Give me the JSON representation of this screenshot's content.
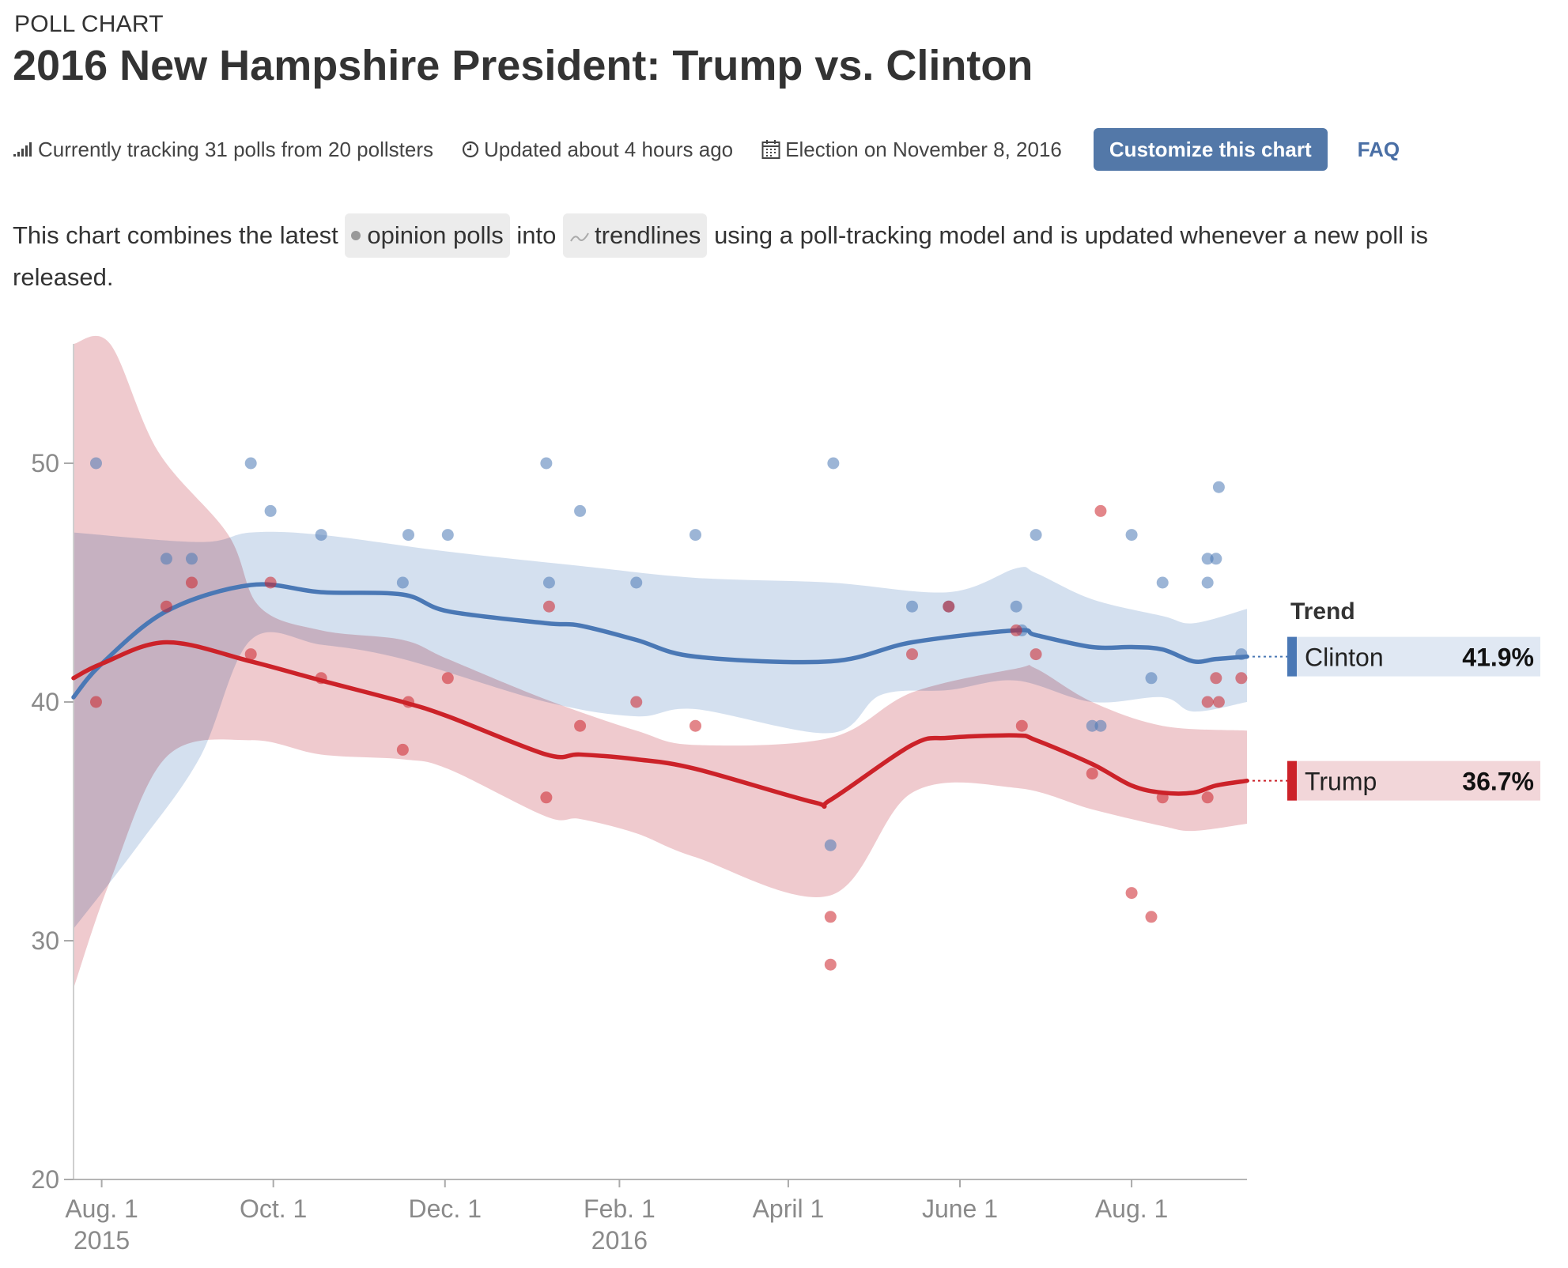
{
  "header": {
    "kicker": "POLL CHART",
    "title": "2016 New Hampshire President: Trump vs. Clinton"
  },
  "meta": {
    "tracking": "Currently tracking 31 polls from 20 pollsters",
    "updated": "Updated about 4 hours ago",
    "election": "Election on November 8, 2016",
    "customize_label": "Customize this chart",
    "faq_label": "FAQ"
  },
  "description": {
    "part1": "This chart combines the latest",
    "chip_polls": "opinion polls",
    "part2": "into",
    "chip_trend": "trendlines",
    "part3": "using a poll-tracking model and is updated whenever a new poll is released."
  },
  "colors": {
    "clinton": "#4a78b5",
    "trump": "#cc2229",
    "clinton_band": "#c6d6ea",
    "trump_band": "#e8b4b9",
    "accent_button": "#5378a8"
  },
  "chart_data": {
    "type": "line",
    "title": "2016 New Hampshire President: Trump vs. Clinton",
    "xlabel": "",
    "ylabel": "",
    "ylim": [
      20,
      55
    ],
    "yticks": [
      20,
      30,
      40,
      50
    ],
    "xlim": [
      "2015-07-22",
      "2016-09-11"
    ],
    "xticks": [
      {
        "date": "2015-08-01",
        "label": "Aug. 1",
        "sublabel": "2015"
      },
      {
        "date": "2015-10-01",
        "label": "Oct. 1",
        "sublabel": ""
      },
      {
        "date": "2015-12-01",
        "label": "Dec. 1",
        "sublabel": ""
      },
      {
        "date": "2016-02-01",
        "label": "Feb. 1",
        "sublabel": "2016"
      },
      {
        "date": "2016-04-01",
        "label": "April 1",
        "sublabel": ""
      },
      {
        "date": "2016-06-01",
        "label": "June 1",
        "sublabel": ""
      },
      {
        "date": "2016-08-01",
        "label": "Aug. 1",
        "sublabel": ""
      }
    ],
    "grid": false,
    "legend": {
      "title": "Trend",
      "placement": "right",
      "entries": [
        {
          "name": "Clinton",
          "value": "41.9%"
        },
        {
          "name": "Trump",
          "value": "36.7%"
        }
      ]
    },
    "series": [
      {
        "name": "Clinton",
        "trend": [
          [
            "2015-07-22",
            40.2
          ],
          [
            "2015-08-01",
            41.6
          ],
          [
            "2015-08-24",
            43.8
          ],
          [
            "2015-09-23",
            44.9
          ],
          [
            "2015-10-18",
            44.6
          ],
          [
            "2015-11-16",
            44.5
          ],
          [
            "2015-12-02",
            43.8
          ],
          [
            "2016-01-06",
            43.3
          ],
          [
            "2016-01-18",
            43.2
          ],
          [
            "2016-02-07",
            42.6
          ],
          [
            "2016-02-28",
            41.9
          ],
          [
            "2016-04-16",
            41.7
          ],
          [
            "2016-05-15",
            42.5
          ],
          [
            "2016-06-21",
            43.0
          ],
          [
            "2016-06-28",
            42.8
          ],
          [
            "2016-07-18",
            42.3
          ],
          [
            "2016-08-01",
            42.3
          ],
          [
            "2016-08-12",
            42.2
          ],
          [
            "2016-08-23",
            41.7
          ],
          [
            "2016-08-31",
            41.8
          ],
          [
            "2016-09-11",
            41.9
          ]
        ],
        "band_upper": [
          [
            "2015-07-22",
            47.1
          ],
          [
            "2015-09-05",
            46.7
          ],
          [
            "2015-09-23",
            47.1
          ],
          [
            "2015-10-18",
            47.0
          ],
          [
            "2015-12-02",
            46.3
          ],
          [
            "2016-01-18",
            45.7
          ],
          [
            "2016-02-28",
            45.2
          ],
          [
            "2016-04-16",
            45.0
          ],
          [
            "2016-05-28",
            44.6
          ],
          [
            "2016-06-21",
            45.6
          ],
          [
            "2016-06-28",
            45.4
          ],
          [
            "2016-07-18",
            44.3
          ],
          [
            "2016-08-12",
            43.6
          ],
          [
            "2016-08-23",
            43.3
          ],
          [
            "2016-09-11",
            43.9
          ]
        ],
        "band_lower": [
          [
            "2015-07-22",
            30.5
          ],
          [
            "2015-08-14",
            34.0
          ],
          [
            "2015-09-05",
            37.7
          ],
          [
            "2015-09-23",
            42.6
          ],
          [
            "2015-10-18",
            42.4
          ],
          [
            "2015-11-16",
            41.8
          ],
          [
            "2016-01-06",
            40.0
          ],
          [
            "2016-02-07",
            39.4
          ],
          [
            "2016-02-28",
            39.7
          ],
          [
            "2016-04-16",
            38.7
          ],
          [
            "2016-05-04",
            40.3
          ],
          [
            "2016-05-28",
            40.5
          ],
          [
            "2016-06-21",
            40.9
          ],
          [
            "2016-07-18",
            40.0
          ],
          [
            "2016-08-12",
            40.2
          ],
          [
            "2016-08-23",
            39.6
          ],
          [
            "2016-09-11",
            40.0
          ]
        ],
        "polls": [
          [
            "2015-07-30",
            50
          ],
          [
            "2015-08-24",
            46
          ],
          [
            "2015-09-02",
            46
          ],
          [
            "2015-09-23",
            50
          ],
          [
            "2015-09-30",
            48
          ],
          [
            "2015-10-18",
            47
          ],
          [
            "2015-11-16",
            45
          ],
          [
            "2015-11-18",
            47
          ],
          [
            "2015-12-02",
            47
          ],
          [
            "2016-01-06",
            50
          ],
          [
            "2016-01-07",
            45
          ],
          [
            "2016-01-18",
            48
          ],
          [
            "2016-02-07",
            45
          ],
          [
            "2016-02-28",
            47
          ],
          [
            "2016-04-16",
            34
          ],
          [
            "2016-04-17",
            50
          ],
          [
            "2016-05-15",
            44
          ],
          [
            "2016-05-28",
            44
          ],
          [
            "2016-06-21",
            44
          ],
          [
            "2016-06-23",
            43
          ],
          [
            "2016-06-28",
            47
          ],
          [
            "2016-07-18",
            39
          ],
          [
            "2016-07-21",
            39
          ],
          [
            "2016-08-01",
            47
          ],
          [
            "2016-08-08",
            41
          ],
          [
            "2016-08-12",
            45
          ],
          [
            "2016-08-28",
            45
          ],
          [
            "2016-08-28",
            46
          ],
          [
            "2016-08-31",
            46
          ],
          [
            "2016-09-01",
            49
          ],
          [
            "2016-09-09",
            42
          ]
        ]
      },
      {
        "name": "Trump",
        "trend": [
          [
            "2015-07-22",
            41.0
          ],
          [
            "2015-08-01",
            41.6
          ],
          [
            "2015-08-24",
            42.5
          ],
          [
            "2015-09-23",
            41.7
          ],
          [
            "2015-10-18",
            40.9
          ],
          [
            "2015-11-16",
            40.0
          ],
          [
            "2015-12-02",
            39.4
          ],
          [
            "2016-01-06",
            37.8
          ],
          [
            "2016-01-18",
            37.8
          ],
          [
            "2016-02-07",
            37.6
          ],
          [
            "2016-02-28",
            37.2
          ],
          [
            "2016-04-10",
            35.8
          ],
          [
            "2016-04-16",
            35.9
          ],
          [
            "2016-05-15",
            38.2
          ],
          [
            "2016-05-28",
            38.5
          ],
          [
            "2016-06-21",
            38.6
          ],
          [
            "2016-06-28",
            38.4
          ],
          [
            "2016-07-18",
            37.4
          ],
          [
            "2016-08-01",
            36.5
          ],
          [
            "2016-08-12",
            36.2
          ],
          [
            "2016-08-23",
            36.2
          ],
          [
            "2016-08-31",
            36.5
          ],
          [
            "2016-09-11",
            36.7
          ]
        ],
        "band_upper": [
          [
            "2015-07-22",
            55
          ],
          [
            "2015-08-04",
            55
          ],
          [
            "2015-08-21",
            50.5
          ],
          [
            "2015-09-15",
            47.0
          ],
          [
            "2015-09-26",
            44.0
          ],
          [
            "2015-10-18",
            43.0
          ],
          [
            "2015-11-16",
            42.6
          ],
          [
            "2015-12-02",
            41.8
          ],
          [
            "2016-01-06",
            40.1
          ],
          [
            "2016-02-07",
            38.8
          ],
          [
            "2016-02-28",
            38.2
          ],
          [
            "2016-04-16",
            38.5
          ],
          [
            "2016-05-15",
            40.4
          ],
          [
            "2016-06-21",
            41.4
          ],
          [
            "2016-06-28",
            41.4
          ],
          [
            "2016-07-18",
            40.0
          ],
          [
            "2016-08-12",
            39.0
          ],
          [
            "2016-09-11",
            38.8
          ]
        ],
        "band_lower": [
          [
            "2015-07-22",
            28.0
          ],
          [
            "2015-08-04",
            32.5
          ],
          [
            "2015-08-24",
            37.7
          ],
          [
            "2015-09-23",
            38.4
          ],
          [
            "2015-10-18",
            37.8
          ],
          [
            "2015-11-16",
            37.6
          ],
          [
            "2015-12-02",
            37.2
          ],
          [
            "2016-01-06",
            35.2
          ],
          [
            "2016-01-18",
            35.1
          ],
          [
            "2016-02-07",
            34.5
          ],
          [
            "2016-02-28",
            33.5
          ],
          [
            "2016-04-16",
            31.9
          ],
          [
            "2016-05-15",
            36.2
          ],
          [
            "2016-06-21",
            36.4
          ],
          [
            "2016-07-18",
            35.5
          ],
          [
            "2016-08-12",
            34.8
          ],
          [
            "2016-08-23",
            34.6
          ],
          [
            "2016-09-11",
            34.9
          ]
        ],
        "polls": [
          [
            "2015-07-30",
            40
          ],
          [
            "2015-08-24",
            44
          ],
          [
            "2015-09-02",
            45
          ],
          [
            "2015-09-23",
            42
          ],
          [
            "2015-09-30",
            45
          ],
          [
            "2015-10-18",
            41
          ],
          [
            "2015-11-16",
            38
          ],
          [
            "2015-11-18",
            40
          ],
          [
            "2015-12-02",
            41
          ],
          [
            "2016-01-06",
            36
          ],
          [
            "2016-01-07",
            44
          ],
          [
            "2016-01-18",
            39
          ],
          [
            "2016-02-07",
            40
          ],
          [
            "2016-02-28",
            39
          ],
          [
            "2016-04-16",
            31
          ],
          [
            "2016-04-16",
            29
          ],
          [
            "2016-05-15",
            42
          ],
          [
            "2016-05-28",
            44
          ],
          [
            "2016-06-21",
            43
          ],
          [
            "2016-06-23",
            39
          ],
          [
            "2016-06-28",
            42
          ],
          [
            "2016-07-18",
            37
          ],
          [
            "2016-07-21",
            48
          ],
          [
            "2016-08-01",
            32
          ],
          [
            "2016-08-08",
            31
          ],
          [
            "2016-08-12",
            36
          ],
          [
            "2016-08-28",
            36
          ],
          [
            "2016-08-28",
            40
          ],
          [
            "2016-08-31",
            41
          ],
          [
            "2016-09-01",
            40
          ],
          [
            "2016-09-09",
            41
          ]
        ]
      }
    ]
  }
}
